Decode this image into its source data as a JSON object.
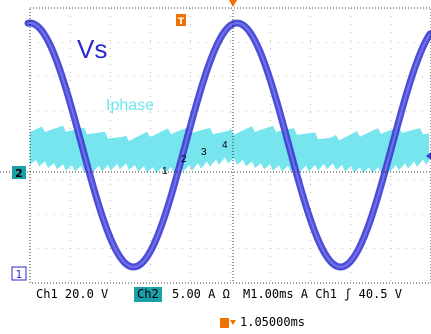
{
  "waveform_labels": {
    "vs": "Vs",
    "iphase": "Iphase",
    "points": [
      "1",
      "2",
      "3",
      "4"
    ]
  },
  "markers": {
    "ch2_marker": "2",
    "ch1_marker": "1",
    "trigger_marker": "T"
  },
  "readouts": {
    "ch1": "Ch1  20.0 V",
    "ch2_label": "Ch2",
    "ch2_scale": "5.00 A Ω",
    "timebase": "M1.00ms  A  Ch1  ʃ   40.5 V",
    "trigger_position": "1.05000ms"
  },
  "colors": {
    "ch1_trace": "#3a3ad0",
    "ch2_trace": "#5fe0ea",
    "ch2_badge": "#1aa0a8",
    "trigger": "#f07000"
  }
}
